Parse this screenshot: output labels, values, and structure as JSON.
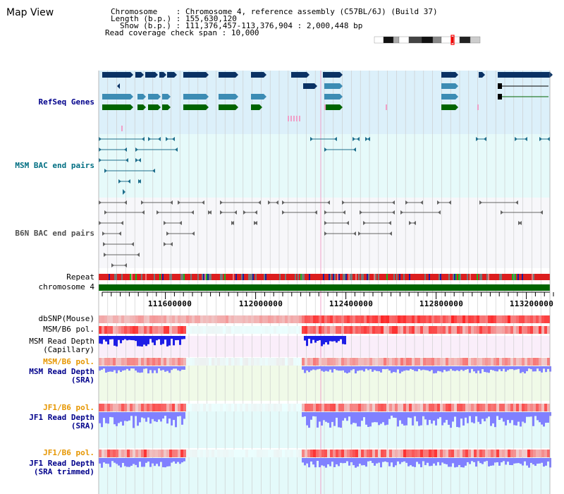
{
  "view_title": "Map View",
  "info": {
    "chromosome_label": "Chromosome",
    "chromosome_value": ": Chromosome 4, reference assembly (C57BL/6J) (Build 37)",
    "length_label": "Length (b.p.)",
    "length_value": ": 155,630,120",
    "show_label": "Show (b.p.)",
    "show_value": ": 111,376,457-113,376,904 : 2,000,448 bp",
    "span_label": "Read coverage check span",
    "span_value": ": 10,000"
  },
  "tracks": {
    "refseq": "RefSeq Genes",
    "msm_bac": "MSM BAC end pairs",
    "b6n_bac": "B6N BAC end pairs",
    "repeat": "Repeat",
    "chromosome": "chromosome 4",
    "dbsnp": "dbSNP(Mouse)",
    "msm_b6_pol_1": "MSM/B6 pol.",
    "msm_depth_cap": "MSM Read Depth\n(Capillary)",
    "msm_b6_pol_2": "MSM/B6 pol.",
    "msm_depth_sra": "MSM Read Depth\n(SRA)",
    "jf1_b6_pol_1": "JF1/B6 pol.",
    "jf1_depth_sra": "JF1 Read Depth\n(SRA)",
    "jf1_b6_pol_2": "JF1/B6 pol.",
    "jf1_depth_trim": "JF1 Read Depth\n(SRA trimmed)"
  },
  "axis": {
    "ticks": [
      "111600000",
      "112000000",
      "112400000",
      "112800000",
      "113200000"
    ]
  },
  "colors": {
    "refseq_bg": "#dcf0fa",
    "msm_bac_bg": "#e6fafa",
    "b6n_bac_bg": "#f7f7fa",
    "gene_dark": "#0a3264",
    "gene_mid": "#3c8cb4",
    "gene_green": "#006400",
    "chromosome": "#006400",
    "depth_blue": "#1e1ee6",
    "depth_light": "#8080ff",
    "label_blue": "#00008b",
    "label_orange": "#e69600",
    "label_teal": "#006e82"
  }
}
